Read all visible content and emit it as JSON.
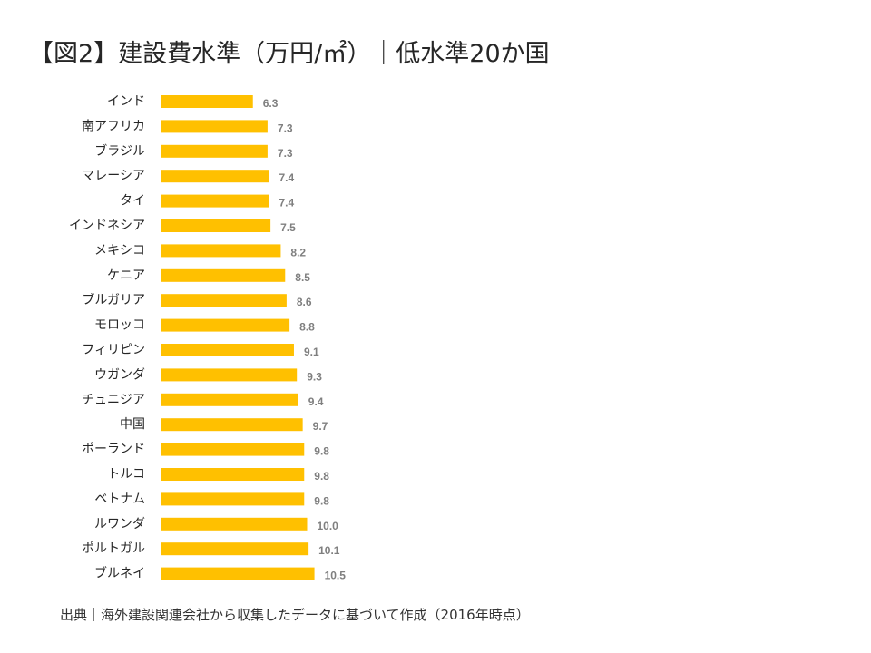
{
  "slide": {
    "title": "【図2】建設費水準（万円/㎡）｜低水準20か国",
    "source": "出典｜海外建設関連会社から収集したデータに基づいて作成（2016年時点）"
  },
  "chart_data": {
    "type": "bar",
    "orientation": "horizontal",
    "title": "【図2】建設費水準（万円/㎡）｜低水準20か国",
    "xlabel": "",
    "ylabel": "",
    "unit": "万円/㎡",
    "grid": false,
    "legend": "none",
    "bar_color": "#FFC000",
    "label_color": "#7F7F7F",
    "categories": [
      "インド",
      "南アフリカ",
      "ブラジル",
      "マレーシア",
      "タイ",
      "インドネシア",
      "メキシコ",
      "ケニア",
      "ブルガリア",
      "モロッコ",
      "フィリピン",
      "ウガンダ",
      "チュニジア",
      "中国",
      "ポーランド",
      "トルコ",
      "ベトナム",
      "ルワンダ",
      "ポルトガル",
      "ブルネイ"
    ],
    "values": [
      6.3,
      7.3,
      7.3,
      7.4,
      7.4,
      7.5,
      8.2,
      8.5,
      8.6,
      8.8,
      9.1,
      9.3,
      9.4,
      9.7,
      9.8,
      9.8,
      9.8,
      10.0,
      10.1,
      10.5
    ],
    "value_labels": [
      "6.3",
      "7.3",
      "7.3",
      "7.4",
      "7.4",
      "7.5",
      "8.2",
      "8.5",
      "8.6",
      "8.8",
      "9.1",
      "9.3",
      "9.4",
      "9.7",
      "9.8",
      "9.8",
      "9.8",
      "10.0",
      "10.1",
      "10.5"
    ]
  }
}
